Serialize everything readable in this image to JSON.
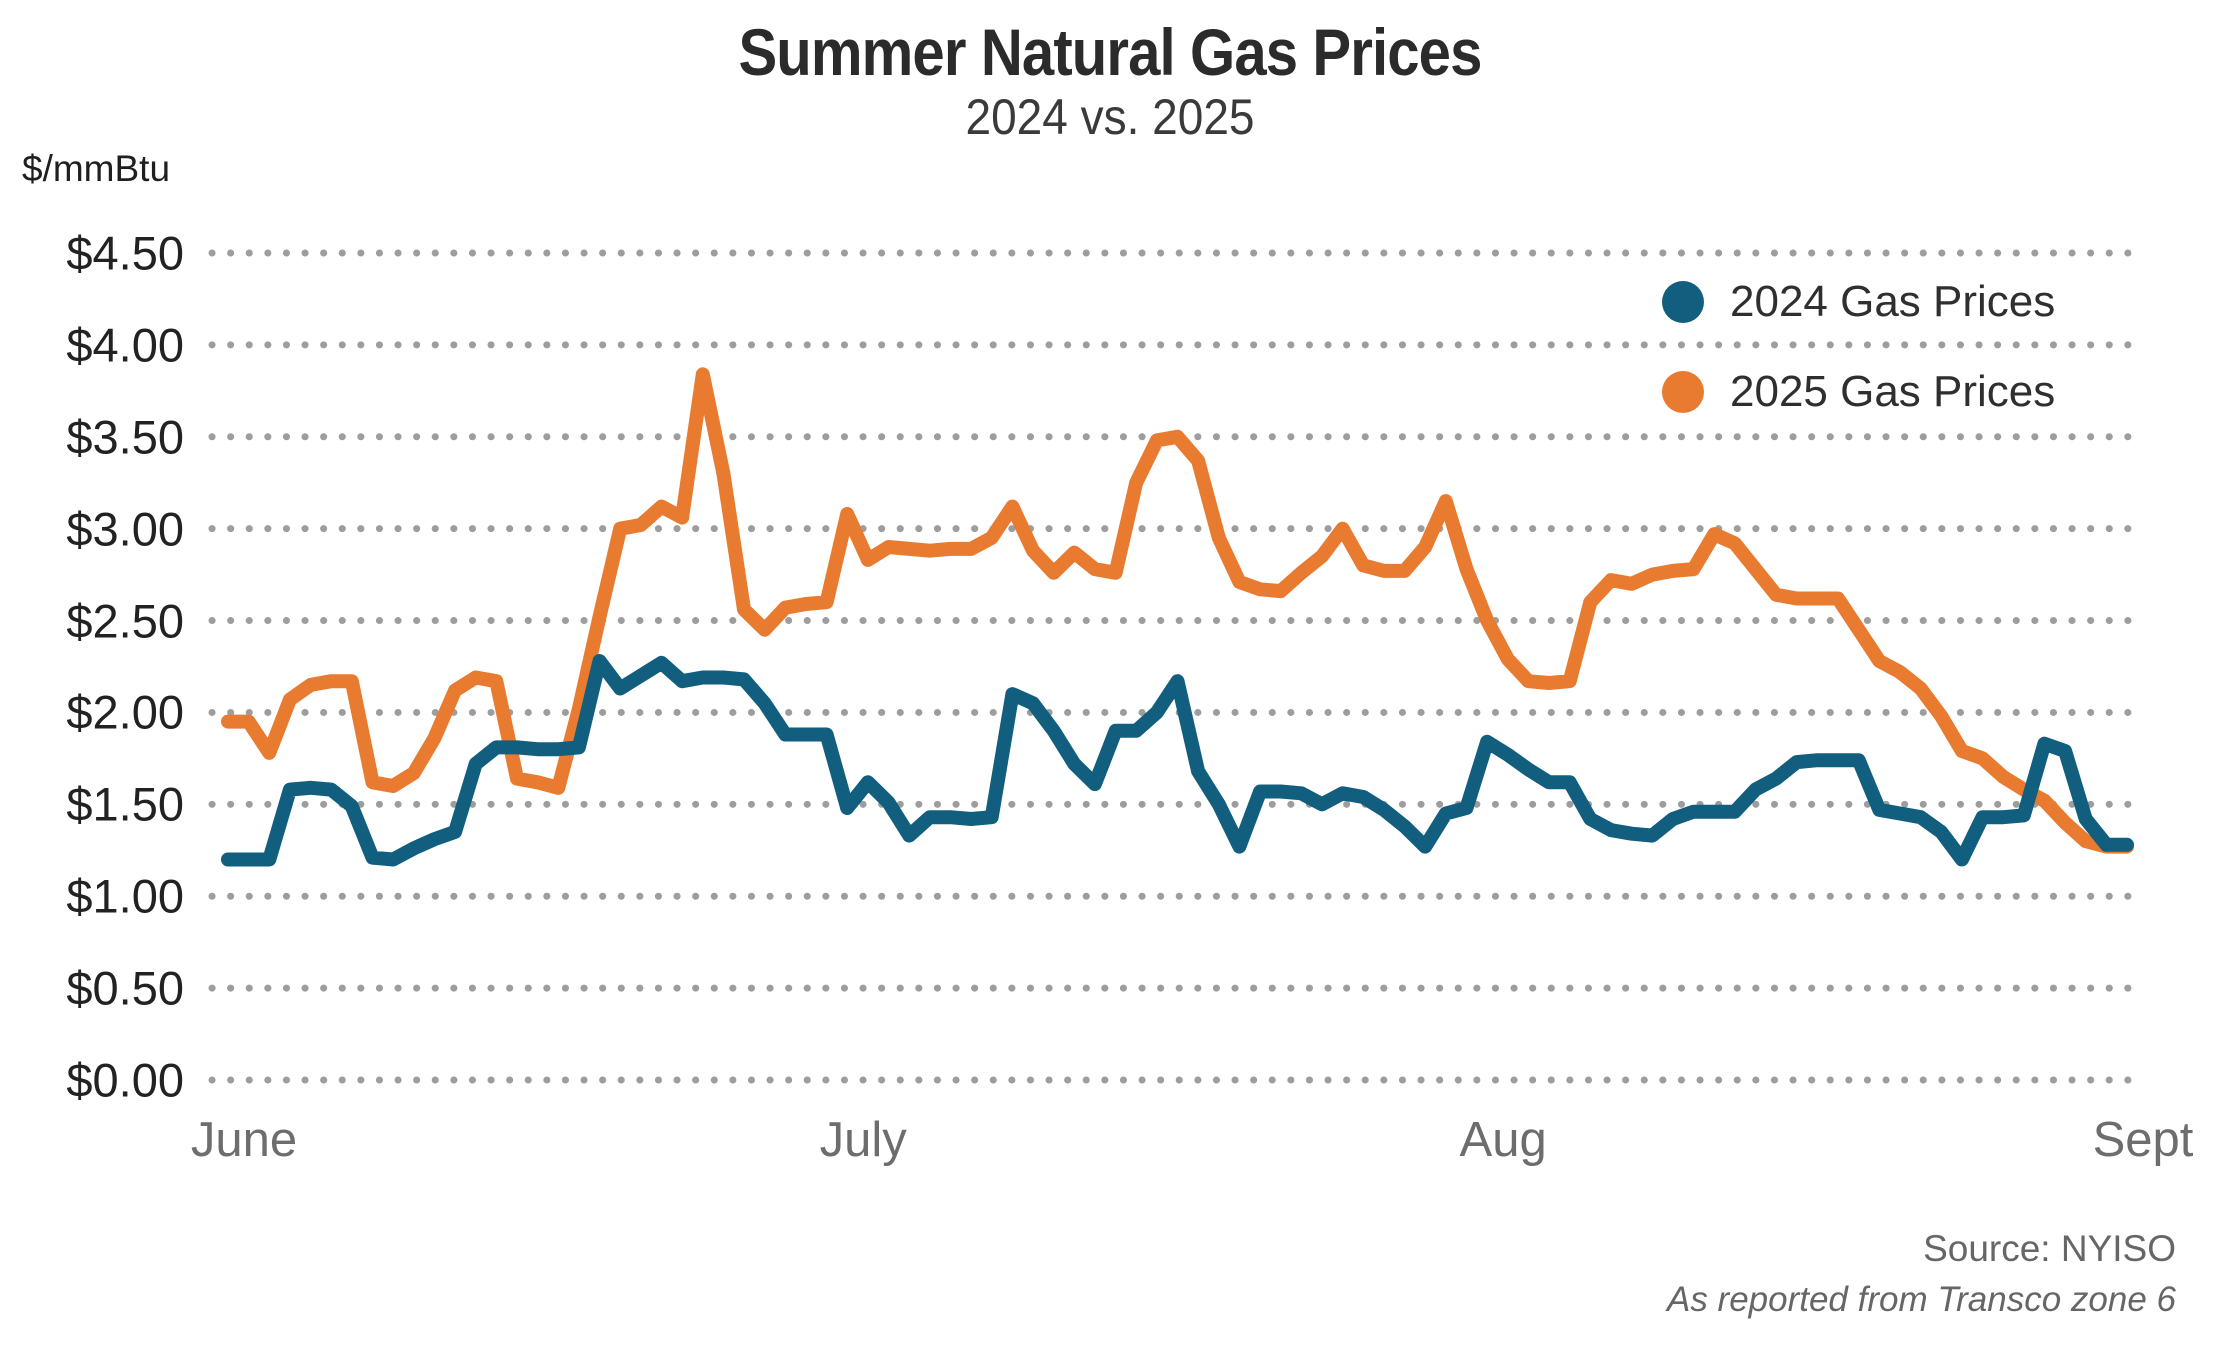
{
  "title": "Summer Natural Gas Prices",
  "subtitle": "2024 vs. 2025",
  "y_axis_unit": "$/mmBtu",
  "source": {
    "line1": "Source: NYISO",
    "line2": "As reported from Transco zone 6"
  },
  "legend": [
    {
      "label": "2024 Gas Prices",
      "color": "#125E7E"
    },
    {
      "label": "2025 Gas Prices",
      "color": "#E87B2F"
    }
  ],
  "colors": {
    "series_2024": "#125E7E",
    "series_2025": "#E87B2F",
    "gridline_dots": "#9d9d9d"
  },
  "chart_data": {
    "type": "line",
    "title": "Summer Natural Gas Prices",
    "subtitle": "2024 vs. 2025",
    "ylabel": "$/mmBtu",
    "ylim": [
      0,
      4.5
    ],
    "ytick_step": 0.5,
    "ytick_labels": [
      "$0.00",
      "$0.50",
      "$1.00",
      "$1.50",
      "$2.00",
      "$2.50",
      "$3.00",
      "$3.50",
      "$4.00",
      "$4.50"
    ],
    "x_frequency": "daily",
    "x_start": "June 1",
    "x_end": "Sept 1",
    "xtick_labels": [
      "June",
      "July",
      "Aug",
      "Sept"
    ],
    "month_start_indices": [
      0,
      30,
      61,
      92
    ],
    "grid": "dotted horizontal",
    "legend_position": "top-right inside plot",
    "series": [
      {
        "name": "2024 Gas Prices",
        "color": "#125E7E",
        "values": [
          1.2,
          1.2,
          1.2,
          1.58,
          1.59,
          1.58,
          1.49,
          1.21,
          1.2,
          1.26,
          1.31,
          1.35,
          1.72,
          1.81,
          1.81,
          1.8,
          1.8,
          1.81,
          2.28,
          2.13,
          2.2,
          2.27,
          2.17,
          2.19,
          2.19,
          2.18,
          2.05,
          1.88,
          1.88,
          1.88,
          1.48,
          1.62,
          1.51,
          1.33,
          1.43,
          1.43,
          1.42,
          1.43,
          2.1,
          2.05,
          1.9,
          1.72,
          1.61,
          1.9,
          1.9,
          2.0,
          2.17,
          1.68,
          1.5,
          1.27,
          1.57,
          1.57,
          1.56,
          1.5,
          1.56,
          1.54,
          1.47,
          1.38,
          1.27,
          1.45,
          1.48,
          1.84,
          1.77,
          1.69,
          1.62,
          1.62,
          1.42,
          1.36,
          1.34,
          1.33,
          1.42,
          1.46,
          1.46,
          1.46,
          1.58,
          1.64,
          1.73,
          1.74,
          1.74,
          1.74,
          1.47,
          1.45,
          1.43,
          1.35,
          1.2,
          1.43,
          1.43,
          1.44,
          1.83,
          1.79,
          1.42,
          1.28,
          1.28
        ]
      },
      {
        "name": "2025 Gas Prices",
        "color": "#E87B2F",
        "values": [
          1.95,
          1.95,
          1.78,
          2.07,
          2.15,
          2.17,
          2.17,
          1.62,
          1.6,
          1.67,
          1.86,
          2.12,
          2.19,
          2.17,
          1.64,
          1.62,
          1.59,
          2.02,
          2.52,
          3.0,
          3.02,
          3.12,
          3.06,
          3.84,
          3.3,
          2.56,
          2.45,
          2.57,
          2.59,
          2.6,
          3.08,
          2.83,
          2.9,
          2.89,
          2.88,
          2.89,
          2.89,
          2.95,
          3.12,
          2.88,
          2.76,
          2.87,
          2.78,
          2.76,
          3.25,
          3.48,
          3.5,
          3.37,
          2.95,
          2.71,
          2.67,
          2.66,
          2.76,
          2.85,
          3.0,
          2.8,
          2.77,
          2.77,
          2.9,
          3.15,
          2.78,
          2.5,
          2.29,
          2.17,
          2.16,
          2.17,
          2.6,
          2.72,
          2.7,
          2.75,
          2.77,
          2.78,
          2.97,
          2.92,
          2.78,
          2.64,
          2.62,
          2.62,
          2.62,
          2.45,
          2.28,
          2.22,
          2.13,
          1.98,
          1.79,
          1.75,
          1.65,
          1.58,
          1.52,
          1.4,
          1.3,
          1.27,
          1.27
        ]
      }
    ]
  }
}
